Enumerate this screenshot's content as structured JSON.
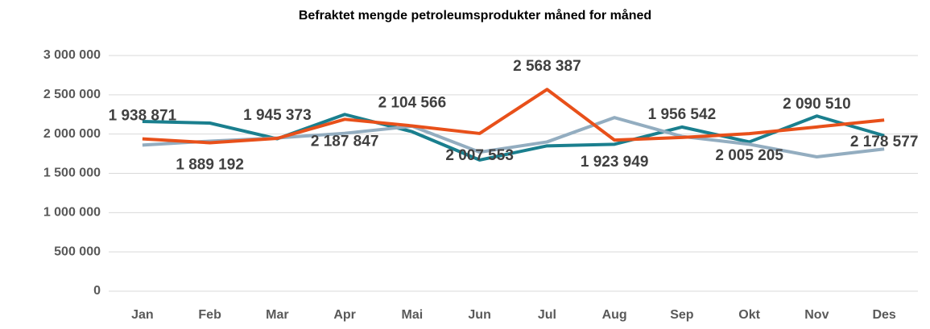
{
  "chart_data": {
    "type": "line",
    "title": "Befraktet mengde petroleumsprodukter måned for måned",
    "categories": [
      "Jan",
      "Feb",
      "Mar",
      "Apr",
      "Mai",
      "Jun",
      "Jul",
      "Aug",
      "Sep",
      "Okt",
      "Nov",
      "Des"
    ],
    "series": [
      {
        "color": "#1a7f8e",
        "values": [
          2160000,
          2140000,
          1940000,
          2250000,
          2030000,
          1670000,
          1850000,
          1870000,
          2090000,
          1900000,
          2230000,
          1980000
        ]
      },
      {
        "color": "#93adc0",
        "values": [
          1860000,
          1910000,
          1950000,
          2010000,
          2100000,
          1770000,
          1900000,
          2210000,
          1970000,
          1870000,
          1710000,
          1810000
        ]
      },
      {
        "color": "#e8501a",
        "values": [
          1938871,
          1889192,
          1945373,
          2187847,
          2104566,
          2007553,
          2568387,
          1923949,
          1956542,
          2005205,
          2090510,
          2178577
        ],
        "value_labels": [
          "1 938 871",
          "1 889 192",
          "1 945 373",
          "2 187 847",
          "2 104 566",
          "2 007 553",
          "2 568 387",
          "1 923 949",
          "1 956 542",
          "2 005 205",
          "2 090 510",
          "2 178 577"
        ]
      }
    ],
    "ylim": [
      0,
      3000000
    ],
    "yticks": [
      0,
      {
        "value": 500000,
        "label": "500 000"
      },
      {
        "value": 1000000,
        "label": "1 000 000"
      },
      {
        "value": 1500000,
        "label": "1 500 000"
      },
      {
        "value": 2000000,
        "label": "2 000 000"
      },
      {
        "value": 2500000,
        "label": "2 500 000"
      },
      {
        "value": 3000000,
        "label": "3 000 000"
      }
    ],
    "grid": true
  }
}
